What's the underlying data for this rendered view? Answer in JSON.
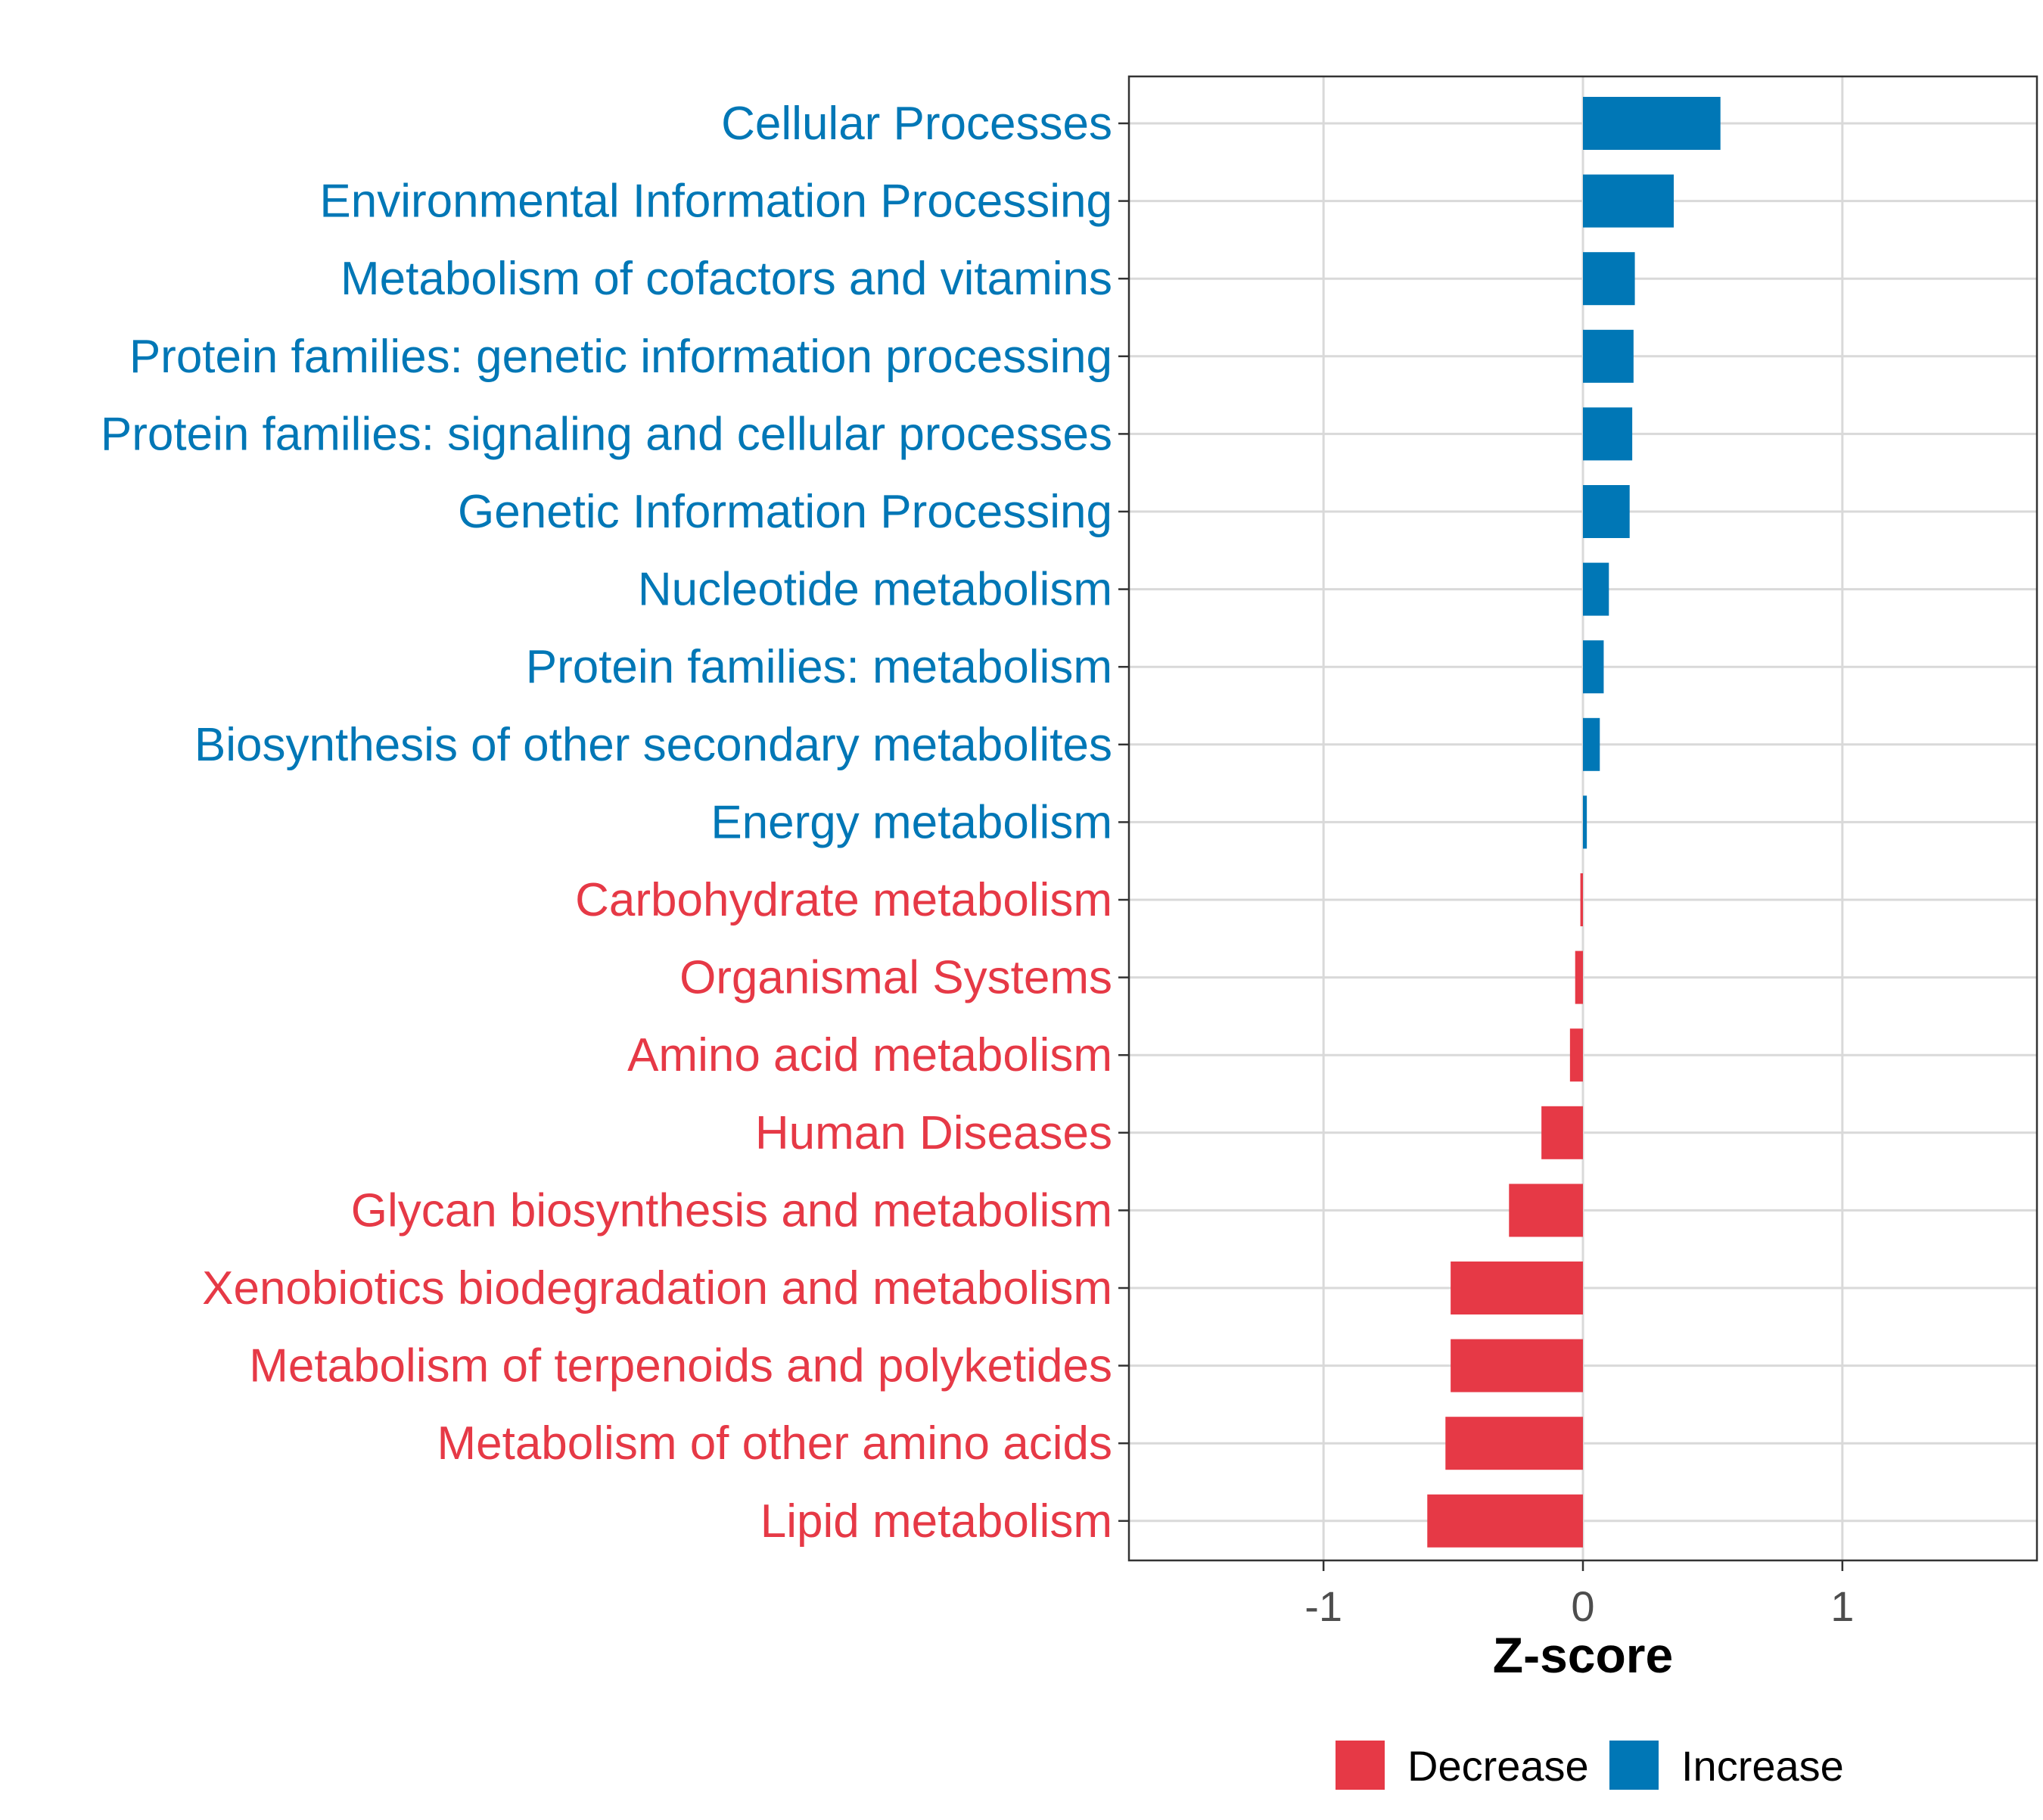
{
  "chart_data": {
    "type": "bar",
    "orientation": "horizontal",
    "title": "",
    "xlabel": "Z-score",
    "ylabel": "",
    "xlim": [
      -1.75,
      1.75
    ],
    "xticks": [
      -1,
      0,
      1
    ],
    "xtick_labels": [
      "-1",
      "0",
      "1"
    ],
    "grid": true,
    "legend_position": "bottom",
    "legend": [
      {
        "label": "Decrease",
        "color": "#E63946"
      },
      {
        "label": "Increase",
        "color": "#0077B6"
      }
    ],
    "categories": [
      "Cellular Processes",
      "Environmental Information Processing",
      "Metabolism of cofactors and vitamins",
      "Protein families: genetic information processing",
      "Protein families: signaling and cellular processes",
      "Genetic Information Processing",
      "Nucleotide metabolism",
      "Protein families: metabolism",
      "Biosynthesis of other secondary metabolites",
      "Energy metabolism",
      "Carbohydrate metabolism",
      "Organismal Systems",
      "Amino acid metabolism",
      "Human Diseases",
      "Glycan biosynthesis and metabolism",
      "Xenobiotics biodegradation and metabolism",
      "Metabolism of terpenoids and polyketides",
      "Metabolism of other amino acids",
      "Lipid metabolism"
    ],
    "values": [
      0.53,
      0.35,
      0.2,
      0.195,
      0.19,
      0.18,
      0.1,
      0.08,
      0.065,
      0.015,
      -0.01,
      -0.03,
      -0.05,
      -0.16,
      -0.285,
      -0.51,
      -0.51,
      -0.53,
      -0.6
    ],
    "direction": [
      "Increase",
      "Increase",
      "Increase",
      "Increase",
      "Increase",
      "Increase",
      "Increase",
      "Increase",
      "Increase",
      "Increase",
      "Decrease",
      "Decrease",
      "Decrease",
      "Decrease",
      "Decrease",
      "Decrease",
      "Decrease",
      "Decrease",
      "Decrease"
    ]
  }
}
